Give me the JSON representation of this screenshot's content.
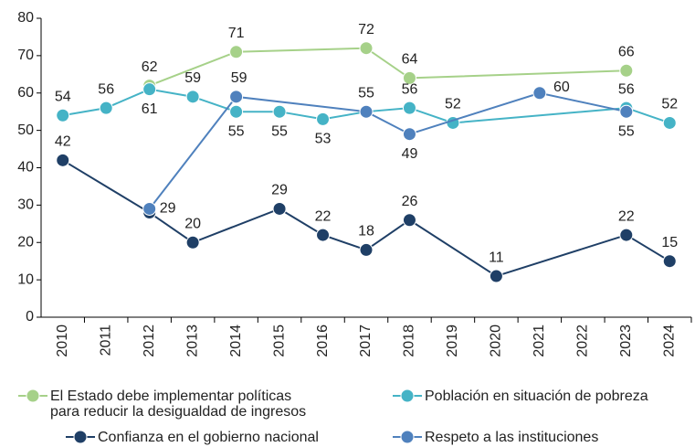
{
  "chart_data": {
    "type": "line",
    "xticks": [
      2010,
      2011,
      2012,
      2013,
      2014,
      2015,
      2016,
      2017,
      2018,
      2019,
      2020,
      2021,
      2022,
      2023,
      2024
    ],
    "xlim": [
      2009.5,
      2024.5
    ],
    "ylim": [
      0,
      80
    ],
    "yticks": [
      0,
      10,
      20,
      30,
      40,
      50,
      60,
      70,
      80
    ],
    "series": [
      {
        "name": "El Estado debe implementar políticas\npara reducir la desigualdad de ingresos",
        "color": "#a6d189",
        "x": [
          2012,
          2014,
          2017,
          2018,
          2023
        ],
        "values": [
          62,
          71,
          72,
          64,
          66
        ]
      },
      {
        "name": "Población en situación de pobreza",
        "color": "#45b3c6",
        "x": [
          2010,
          2011,
          2012,
          2013,
          2014,
          2015,
          2016,
          2017,
          2018,
          2019,
          2023,
          2024
        ],
        "values": [
          54,
          56,
          61,
          59,
          55,
          55,
          53,
          55,
          56,
          52,
          56,
          52
        ]
      },
      {
        "name": "Confianza en el gobierno nacional",
        "color": "#1f3f66",
        "x": [
          2010,
          2012,
          2013,
          2015,
          2016,
          2017,
          2018,
          2020,
          2023,
          2024
        ],
        "values": [
          42,
          28,
          20,
          29,
          22,
          18,
          26,
          11,
          22,
          15
        ],
        "value_labels": [
          42,
          null,
          20,
          29,
          22,
          18,
          26,
          11,
          22,
          15
        ]
      },
      {
        "name": "Respeto a las instituciones",
        "color": "#4f81bd",
        "x": [
          2012,
          2014,
          2017,
          2018,
          2021,
          2023
        ],
        "values": [
          29,
          59,
          55,
          49,
          60,
          55
        ],
        "value_labels": [
          29,
          59,
          null,
          49,
          60,
          55
        ]
      }
    ]
  }
}
